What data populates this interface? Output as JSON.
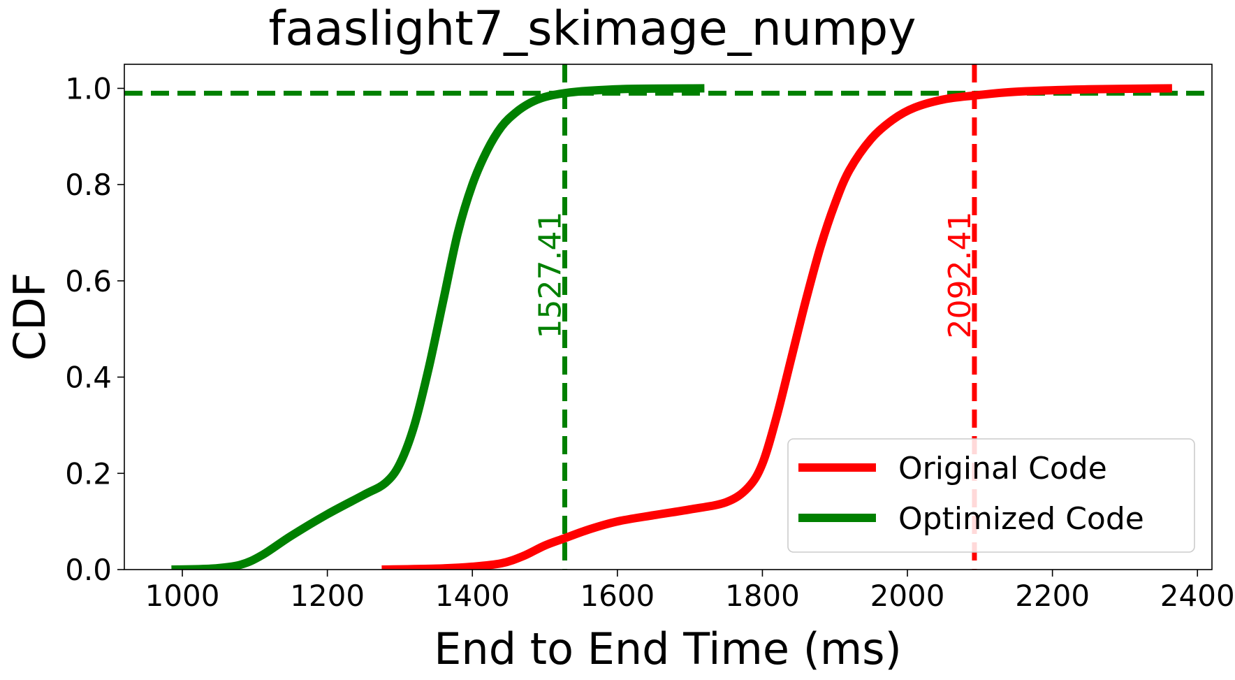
{
  "chart_data": {
    "type": "line",
    "title": "faaslight7_skimage_numpy",
    "xlabel": "End to End Time (ms)",
    "ylabel": "CDF",
    "xlim": [
      920,
      2420
    ],
    "ylim": [
      0,
      1.05
    ],
    "xticks": [
      1000,
      1200,
      1400,
      1600,
      1800,
      2000,
      2200,
      2400
    ],
    "xtick_labels": [
      "1000",
      "1200",
      "1400",
      "1600",
      "1800",
      "2000",
      "2200",
      "2400"
    ],
    "yticks": [
      0.0,
      0.2,
      0.4,
      0.6,
      0.8,
      1.0
    ],
    "ytick_labels": [
      "0.0",
      "0.2",
      "0.4",
      "0.6",
      "0.8",
      "1.0"
    ],
    "grid": false,
    "legend_position": "lower-right",
    "series": [
      {
        "name": "Original Code",
        "color": "#ff0000",
        "x": [
          1275,
          1350,
          1400,
          1440,
          1470,
          1500,
          1527,
          1560,
          1600,
          1650,
          1700,
          1750,
          1780,
          1800,
          1820,
          1840,
          1860,
          1880,
          1900,
          1920,
          1950,
          1980,
          2010,
          2050,
          2092,
          2150,
          2250,
          2365
        ],
        "y": [
          0.0,
          0.002,
          0.006,
          0.013,
          0.028,
          0.05,
          0.065,
          0.083,
          0.1,
          0.113,
          0.125,
          0.14,
          0.17,
          0.22,
          0.32,
          0.44,
          0.56,
          0.67,
          0.76,
          0.83,
          0.895,
          0.935,
          0.96,
          0.977,
          0.985,
          0.993,
          0.998,
          1.0
        ]
      },
      {
        "name": "Optimized Code",
        "color": "#008000",
        "x": [
          985,
          1040,
          1080,
          1110,
          1150,
          1200,
          1250,
          1280,
          1300,
          1320,
          1340,
          1360,
          1380,
          1400,
          1420,
          1440,
          1460,
          1480,
          1500,
          1527,
          1560,
          1620,
          1720
        ],
        "y": [
          0.0,
          0.002,
          0.01,
          0.03,
          0.07,
          0.115,
          0.155,
          0.18,
          0.22,
          0.3,
          0.42,
          0.56,
          0.7,
          0.8,
          0.87,
          0.92,
          0.95,
          0.97,
          0.982,
          0.99,
          0.995,
          0.999,
          1.0
        ]
      }
    ],
    "reference_lines": [
      {
        "orientation": "vertical",
        "x": 1527.41,
        "color": "#008000",
        "label": "1527.41"
      },
      {
        "orientation": "vertical",
        "x": 2092.41,
        "color": "#ff0000",
        "label": "2092.41"
      },
      {
        "orientation": "horizontal",
        "y": 0.99,
        "color": "#008000"
      }
    ]
  }
}
